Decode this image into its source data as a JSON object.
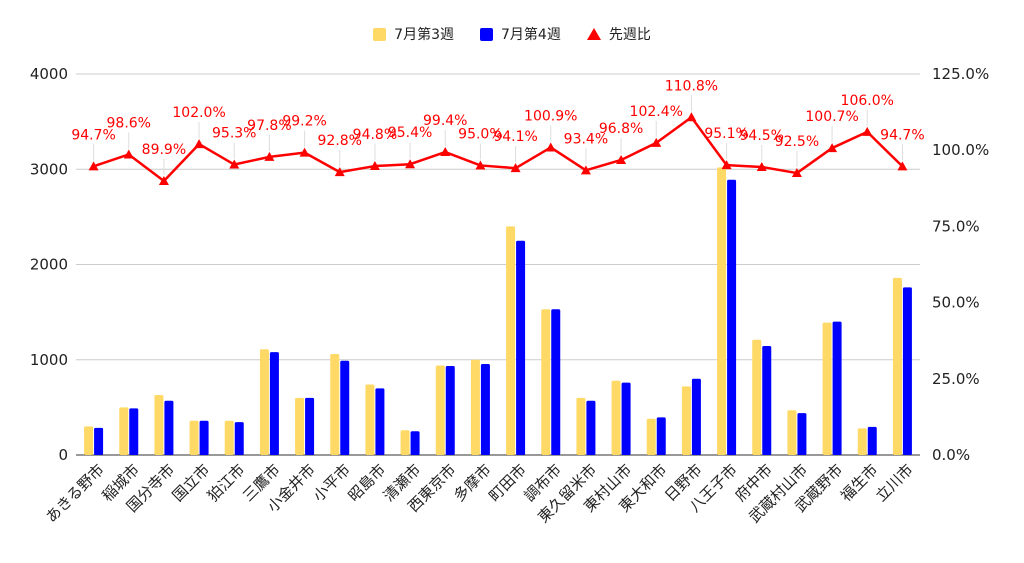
{
  "chart_data": {
    "type": "bar",
    "title": "",
    "legend_position": "top",
    "categories": [
      "あきる野市",
      "稲城市",
      "国分寺市",
      "国立市",
      "狛江市",
      "三鷹市",
      "小金井市",
      "小平市",
      "昭島市",
      "清瀬市",
      "西東京市",
      "多摩市",
      "町田市",
      "調布市",
      "東久留米市",
      "東村山市",
      "東大和市",
      "日野市",
      "八王子市",
      "府中市",
      "武蔵村山市",
      "武蔵野市",
      "福生市",
      "立川市"
    ],
    "series": [
      {
        "name": "7月第3週",
        "type": "bar",
        "axis": "left",
        "color": "#ffd966",
        "values": [
          300,
          500,
          630,
          360,
          360,
          1110,
          600,
          1060,
          740,
          260,
          940,
          1000,
          2400,
          1530,
          600,
          780,
          380,
          720,
          3020,
          1210,
          470,
          1390,
          280,
          1860
        ]
      },
      {
        "name": "7月第4週",
        "type": "bar",
        "axis": "left",
        "color": "#0000ff",
        "values": [
          285,
          490,
          570,
          360,
          345,
          1080,
          600,
          990,
          700,
          250,
          935,
          955,
          2250,
          1530,
          570,
          760,
          395,
          800,
          2890,
          1145,
          440,
          1400,
          295,
          1760
        ]
      },
      {
        "name": "先週比",
        "type": "line",
        "axis": "right",
        "color": "#ff0000",
        "values": [
          94.7,
          98.6,
          89.9,
          102.0,
          95.3,
          97.8,
          99.2,
          92.8,
          94.8,
          95.4,
          99.4,
          95.0,
          94.1,
          100.9,
          93.4,
          96.8,
          102.4,
          110.8,
          95.1,
          94.5,
          92.5,
          100.7,
          106.0,
          94.7
        ],
        "labels": [
          "94.7%",
          "98.6%",
          "89.9%",
          "102.0%",
          "95.3%",
          "97.8%",
          "99.2%",
          "92.8%",
          "94.8%",
          "95.4%",
          "99.4%",
          "95.0%",
          "94.1%",
          "100.9%",
          "93.4%",
          "96.8%",
          "102.4%",
          "110.8%",
          "95.1%",
          "94.5%",
          "92.5%",
          "100.7%",
          "106.0%",
          "94.7%"
        ]
      }
    ],
    "y_left": {
      "min": 0,
      "max": 4000,
      "ticks": [
        "0",
        "1000",
        "2000",
        "3000",
        "4000"
      ]
    },
    "y_right": {
      "min": 0,
      "max": 125,
      "ticks": [
        "0.0%",
        "25.0%",
        "50.0%",
        "75.0%",
        "100.0%",
        "125.0%"
      ]
    },
    "grid": true
  }
}
